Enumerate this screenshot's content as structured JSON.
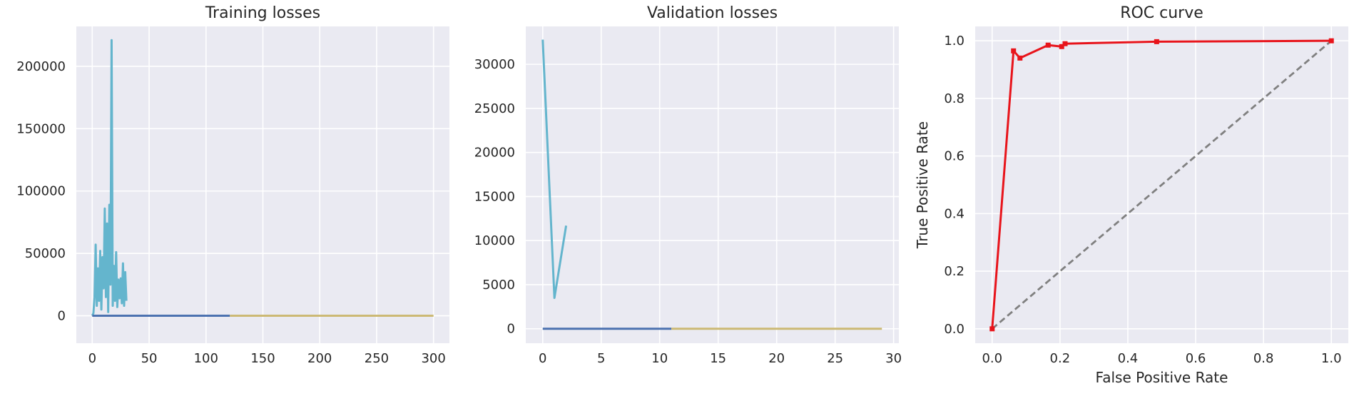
{
  "chart_data": [
    {
      "type": "line",
      "title": "Training losses",
      "xlabel": "",
      "ylabel": "",
      "xlim": [
        -14,
        314
      ],
      "ylim": [
        -22000,
        232000
      ],
      "xticks": [
        0,
        50,
        100,
        150,
        200,
        250,
        300
      ],
      "xtick_labels": [
        "0",
        "50",
        "100",
        "150",
        "200",
        "250",
        "300"
      ],
      "yticks": [
        0,
        50000,
        100000,
        150000,
        200000
      ],
      "ytick_labels": [
        "0",
        "50000",
        "100000",
        "150000",
        "200000"
      ],
      "grid": true,
      "series": [
        {
          "color": "#64b5cd",
          "x": [
            0,
            1,
            2,
            3,
            4,
            5,
            6,
            7,
            8,
            9,
            10,
            11,
            12,
            13,
            14,
            15,
            16,
            17,
            18,
            19,
            20,
            21,
            22,
            23,
            24,
            25,
            26,
            27,
            28,
            29,
            30
          ],
          "y": [
            0,
            2000,
            15000,
            57000,
            8000,
            38000,
            12000,
            52000,
            5000,
            47000,
            22000,
            86000,
            15000,
            74000,
            3000,
            89000,
            25000,
            221000,
            8000,
            40000,
            12000,
            51000,
            7000,
            29000,
            14000,
            30000,
            10000,
            42000,
            8000,
            35000,
            12000
          ]
        },
        {
          "color": "#4c72b0",
          "x": [
            0,
            121
          ],
          "y": [
            0,
            0
          ]
        },
        {
          "color": "#ccb974",
          "x": [
            121,
            300
          ],
          "y": [
            0,
            0
          ]
        }
      ]
    },
    {
      "type": "line",
      "title": "Validation losses",
      "xlabel": "",
      "ylabel": "",
      "xlim": [
        -1.45,
        30.45
      ],
      "ylim": [
        -1640,
        34300
      ],
      "xticks": [
        0,
        5,
        10,
        15,
        20,
        25,
        30
      ],
      "xtick_labels": [
        "0",
        "5",
        "10",
        "15",
        "20",
        "25",
        "30"
      ],
      "yticks": [
        0,
        5000,
        10000,
        15000,
        20000,
        25000,
        30000
      ],
      "ytick_labels": [
        "0",
        "5000",
        "10000",
        "15000",
        "20000",
        "25000",
        "30000"
      ],
      "grid": true,
      "series": [
        {
          "color": "#64b5cd",
          "x": [
            0,
            1,
            2
          ],
          "y": [
            32800,
            3500,
            11700
          ]
        },
        {
          "color": "#4c72b0",
          "x": [
            0,
            11
          ],
          "y": [
            0,
            0
          ]
        },
        {
          "color": "#ccb974",
          "x": [
            11,
            29
          ],
          "y": [
            0,
            0
          ]
        }
      ]
    },
    {
      "type": "line",
      "title": "ROC curve",
      "xlabel": "False Positive Rate",
      "ylabel": "True Positive Rate",
      "xlim": [
        -0.05,
        1.05
      ],
      "ylim": [
        -0.05,
        1.05
      ],
      "xticks": [
        0.0,
        0.2,
        0.4,
        0.6,
        0.8,
        1.0
      ],
      "xtick_labels": [
        "0.0",
        "0.2",
        "0.4",
        "0.6",
        "0.8",
        "1.0"
      ],
      "yticks": [
        0.0,
        0.2,
        0.4,
        0.6,
        0.8,
        1.0
      ],
      "ytick_labels": [
        "0.0",
        "0.2",
        "0.4",
        "0.6",
        "0.8",
        "1.0"
      ],
      "grid": true,
      "series": [
        {
          "color": "#808080",
          "dashed": true,
          "x": [
            0,
            1
          ],
          "y": [
            0,
            1
          ]
        },
        {
          "color": "#e8141b",
          "markers": true,
          "x": [
            0.0,
            0.063,
            0.082,
            0.165,
            0.205,
            0.215,
            0.485,
            1.0
          ],
          "y": [
            0.0,
            0.965,
            0.94,
            0.985,
            0.98,
            0.99,
            0.997,
            1.0
          ]
        }
      ]
    }
  ]
}
